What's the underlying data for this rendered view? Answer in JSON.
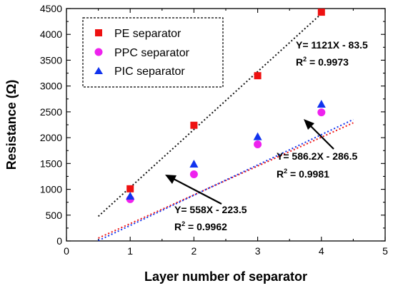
{
  "chart_data": {
    "type": "scatter",
    "xlabel": "Layer number of separator",
    "ylabel": "Resistance (Ω)",
    "xlim": [
      0,
      5
    ],
    "ylim": [
      0,
      4500
    ],
    "xticks": [
      "0",
      "1",
      "2",
      "3",
      "4",
      "5"
    ],
    "yticks": [
      "0",
      "500",
      "1000",
      "1500",
      "2000",
      "2500",
      "3000",
      "3500",
      "4000",
      "4500"
    ],
    "legend_position": "top-left",
    "grid": false,
    "series": [
      {
        "name": "PE separator",
        "marker": "square",
        "color": "#ee1111",
        "x": [
          1,
          2,
          3,
          4
        ],
        "y": [
          1010,
          2240,
          3200,
          4430
        ],
        "fit": {
          "slope": 1121,
          "intercept": -83.5,
          "x_range": [
            0.5,
            4.0
          ],
          "color": "#111111"
        }
      },
      {
        "name": "PPC separator",
        "marker": "circle",
        "color": "#ee22ee",
        "x": [
          1,
          2,
          3,
          4
        ],
        "y": [
          810,
          1290,
          1870,
          2490
        ],
        "fit": {
          "slope": 558,
          "intercept": -223.5,
          "x_range": [
            0.5,
            4.5
          ],
          "color": "#ee1111"
        }
      },
      {
        "name": "PIC separator",
        "marker": "triangle",
        "color": "#1133ee",
        "x": [
          1,
          2,
          3,
          4
        ],
        "y": [
          870,
          1490,
          2020,
          2650
        ],
        "fit": {
          "slope": 586.2,
          "intercept": -286.5,
          "x_range": [
            0.5,
            4.5
          ],
          "color": "#1133ee"
        }
      }
    ],
    "annotations": {
      "pe": {
        "equation": "Y= 1121X - 83.5",
        "r2_prefix": "R",
        "r2_sup": "2",
        "r2_value": " = 0.9973"
      },
      "pic": {
        "equation": "Y= 586.2X - 286.5",
        "r2_prefix": "R",
        "r2_sup": "2",
        "r2_value": " = 0.9981"
      },
      "ppc": {
        "equation": "Y= 558X - 223.5",
        "r2_prefix": "R",
        "r2_sup": "2",
        "r2_value": " = 0.9962"
      }
    }
  }
}
